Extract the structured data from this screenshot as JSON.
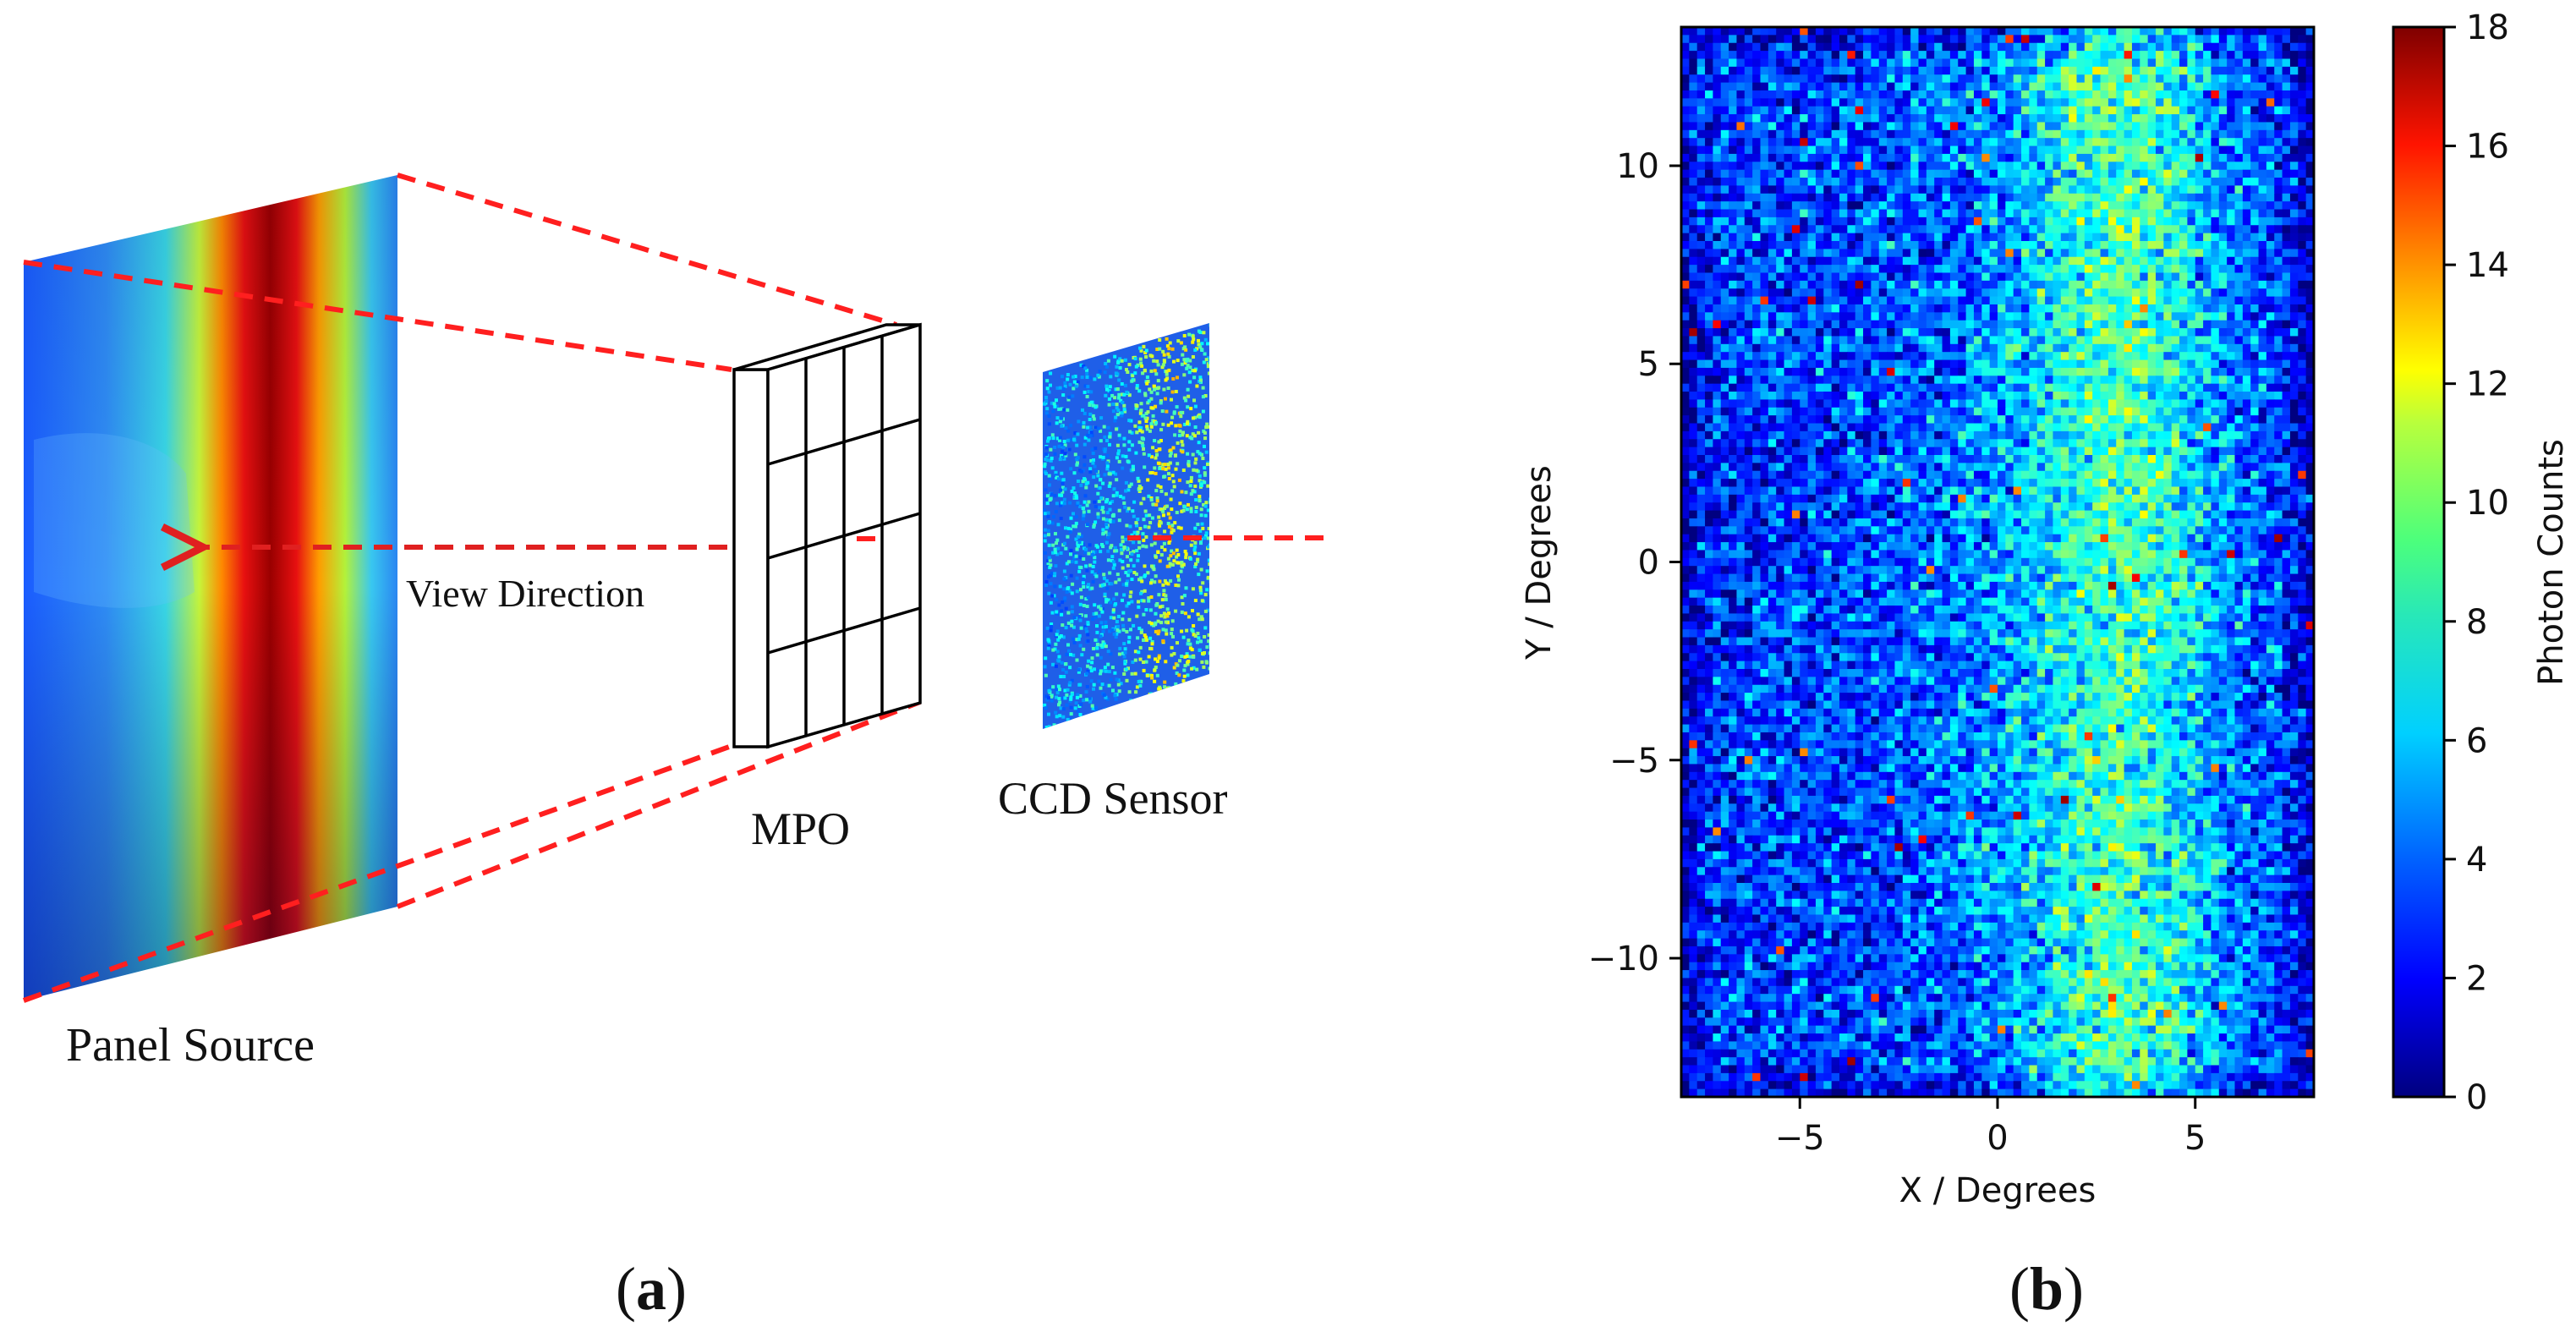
{
  "panel_a": {
    "caption_open": "(",
    "caption_letter": "a",
    "caption_close": ")",
    "labels": {
      "panel_source": "Panel Source",
      "view_direction": "View Direction",
      "mpo": "MPO",
      "ccd_sensor": "CCD Sensor"
    },
    "colors": {
      "projection_lines": "#ff1f1f",
      "arrow": "#e02020",
      "frame": "#000000"
    }
  },
  "panel_b": {
    "caption_open": "(",
    "caption_letter": "b",
    "caption_close": ")",
    "chart_data": {
      "type": "heatmap",
      "xlabel": "X / Degrees",
      "ylabel": "Y / Degrees",
      "xlim": [
        -8,
        8
      ],
      "ylim": [
        -13.5,
        13.5
      ],
      "xticks": [
        -5,
        0,
        5
      ],
      "yticks": [
        -10,
        -5,
        0,
        5,
        10
      ],
      "colorbar": {
        "label": "Photon Counts",
        "min": 0,
        "max": 18,
        "ticks": [
          0,
          2,
          4,
          6,
          8,
          10,
          12,
          14,
          16,
          18
        ],
        "colormap": "jet"
      },
      "grid": false,
      "description_of_values": "Photon counts per pixel: background ~2-5, elevated band (~6-12) concentrated near X = 1 to 5 degrees with sparse peaks up to ~17"
    }
  }
}
